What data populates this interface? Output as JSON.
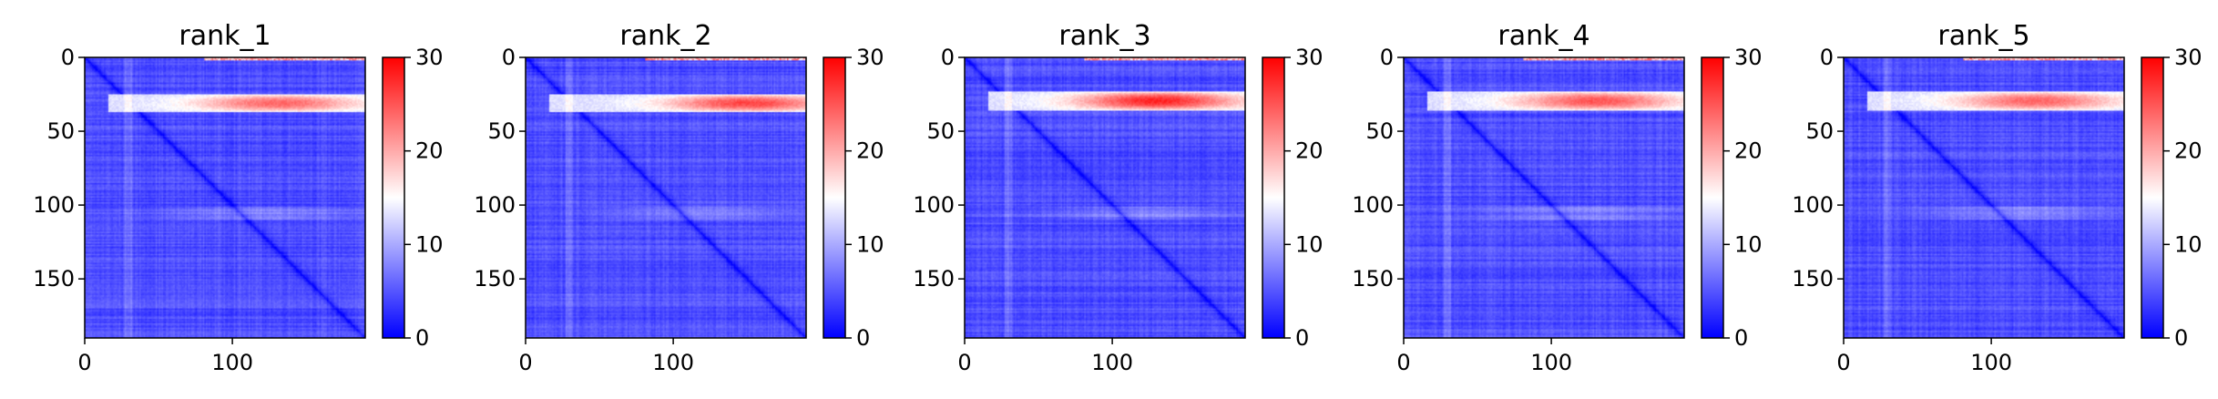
{
  "chart_data": {
    "type": "heatmap",
    "colormap": "bwr",
    "colormap_colors": {
      "low": "#0000ff",
      "mid": "#ffffff",
      "high": "#ff0000"
    },
    "n": 190,
    "xticks": [
      0,
      100
    ],
    "yticks": [
      0,
      50,
      100,
      150
    ],
    "xtick_labels": [
      "0",
      "100"
    ],
    "ytick_labels": [
      "0",
      "50",
      "100",
      "150"
    ],
    "colorbar": {
      "range": [
        0,
        30
      ],
      "ticks": [
        0,
        10,
        20,
        30
      ],
      "tick_labels": [
        "0",
        "10",
        "20",
        "30"
      ]
    },
    "panels": [
      {
        "title": "rank_1",
        "stripe_peak": 24,
        "stripe_center": 130,
        "stripe_rows": [
          25,
          36
        ]
      },
      {
        "title": "rank_2",
        "stripe_peak": 26,
        "stripe_center": 150,
        "stripe_rows": [
          25,
          36
        ]
      },
      {
        "title": "rank_3",
        "stripe_peak": 28,
        "stripe_center": 130,
        "stripe_rows": [
          23,
          35
        ]
      },
      {
        "title": "rank_4",
        "stripe_peak": 25,
        "stripe_center": 130,
        "stripe_rows": [
          23,
          35
        ]
      },
      {
        "title": "rank_5",
        "stripe_peak": 24,
        "stripe_center": 130,
        "stripe_rows": [
          23,
          35
        ]
      }
    ]
  }
}
